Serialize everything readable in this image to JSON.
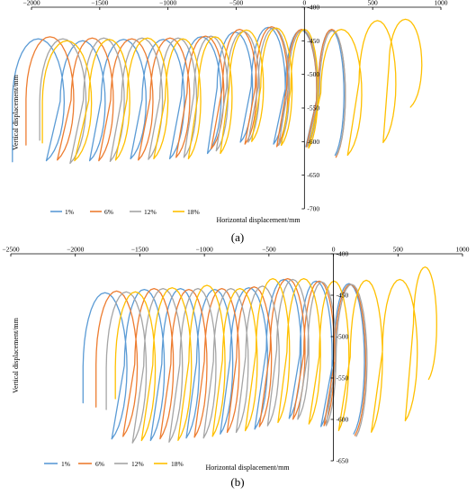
{
  "chart_data": [
    {
      "type": "line",
      "panel_label": "(a)",
      "xlabel": "Horizontal displacement/mm",
      "ylabel": "Vertical displacement/mm",
      "xlim": [
        -2000,
        1000
      ],
      "ylim": [
        -700,
        -400
      ],
      "x_ticks": [
        -2000,
        -1500,
        -1000,
        -500,
        0,
        500,
        1000
      ],
      "x_tick_labels": [
        "−2000",
        "−1500",
        "−1000",
        "−500",
        "0",
        "500",
        "1000"
      ],
      "y_ticks": [
        -400,
        -450,
        -500,
        -550,
        -600,
        -650,
        -700
      ],
      "y_tick_labels": [
        "-400",
        "-450",
        "-500",
        "-550",
        "-600",
        "-650",
        "-700"
      ],
      "grid": false,
      "legend_position": "bottom-left",
      "series": [
        {
          "name": "1%",
          "color": "#5B9BD5",
          "start": [
            -2140,
            -630
          ],
          "cycles": [
            {
              "left": -2140,
              "right": -1760,
              "top": -447,
              "bottom": -633
            },
            {
              "left": -1790,
              "right": -1460,
              "top": -450,
              "bottom": -633
            },
            {
              "left": -1490,
              "right": -1160,
              "top": -448,
              "bottom": -630
            },
            {
              "left": -1190,
              "right": -880,
              "top": -448,
              "bottom": -630
            },
            {
              "left": -900,
              "right": -610,
              "top": -444,
              "bottom": -622
            },
            {
              "left": -640,
              "right": -380,
              "top": -437,
              "bottom": -605
            },
            {
              "left": -390,
              "right": -140,
              "top": -430,
              "bottom": -608
            },
            {
              "left": -140,
              "right": 90,
              "top": -434,
              "bottom": -612
            },
            {
              "left": 100,
              "right": 290,
              "top": -434,
              "bottom": -625
            }
          ]
        },
        {
          "name": "6%",
          "color": "#ED7D31",
          "start": [
            -2040,
            -605
          ],
          "cycles": [
            {
              "left": -2040,
              "right": -1690,
              "top": -444,
              "bottom": -632
            },
            {
              "left": -1710,
              "right": -1400,
              "top": -446,
              "bottom": -633
            },
            {
              "left": -1420,
              "right": -1110,
              "top": -447,
              "bottom": -632
            },
            {
              "left": -1130,
              "right": -840,
              "top": -446,
              "bottom": -628
            },
            {
              "left": -860,
              "right": -590,
              "top": -443,
              "bottom": -615
            },
            {
              "left": -600,
              "right": -350,
              "top": -433,
              "bottom": -608
            },
            {
              "left": -360,
              "right": -120,
              "top": -429,
              "bottom": -612
            },
            {
              "left": -130,
              "right": 90,
              "top": -433,
              "bottom": -612
            },
            {
              "left": 100,
              "right": 300,
              "top": -433,
              "bottom": -628
            }
          ]
        },
        {
          "name": "12%",
          "color": "#A5A5A5",
          "start": [
            -1940,
            -598
          ],
          "cycles": [
            {
              "left": -1940,
              "right": -1600,
              "top": -447,
              "bottom": -637
            },
            {
              "left": -1620,
              "right": -1320,
              "top": -446,
              "bottom": -634
            },
            {
              "left": -1340,
              "right": -1040,
              "top": -446,
              "bottom": -631
            },
            {
              "left": -1060,
              "right": -790,
              "top": -446,
              "bottom": -628
            },
            {
              "left": -810,
              "right": -560,
              "top": -443,
              "bottom": -618
            },
            {
              "left": -570,
              "right": -330,
              "top": -436,
              "bottom": -605
            },
            {
              "left": -340,
              "right": -110,
              "top": -431,
              "bottom": -610
            },
            {
              "left": -120,
              "right": 95,
              "top": -434,
              "bottom": -612
            },
            {
              "left": 110,
              "right": 300,
              "top": -435,
              "bottom": -625
            }
          ]
        },
        {
          "name": "18%",
          "color": "#FFC000",
          "start": [
            -1920,
            -602
          ],
          "cycles": [
            {
              "left": -1920,
              "right": -1560,
              "top": -450,
              "bottom": -633
            },
            {
              "left": -1580,
              "right": -1280,
              "top": -448,
              "bottom": -632
            },
            {
              "left": -1300,
              "right": -1000,
              "top": -446,
              "bottom": -630
            },
            {
              "left": -1020,
              "right": -760,
              "top": -447,
              "bottom": -630
            },
            {
              "left": -780,
              "right": -530,
              "top": -444,
              "bottom": -622
            },
            {
              "left": -550,
              "right": -300,
              "top": -434,
              "bottom": -604
            },
            {
              "left": -320,
              "right": -90,
              "top": -431,
              "bottom": -610
            },
            {
              "left": -100,
              "right": 100,
              "top": -433,
              "bottom": -614
            },
            {
              "left": 120,
              "right": 420,
              "top": -433,
              "bottom": -625
            },
            {
              "left": 400,
              "right": 670,
              "top": -420,
              "bottom": -606
            },
            {
              "left": 620,
              "right": 860,
              "top": -418,
              "bottom": -552
            }
          ]
        }
      ]
    },
    {
      "type": "line",
      "panel_label": "(b)",
      "xlabel": "Horizontal displacement/mm",
      "ylabel": "Vertical displacement/mm",
      "xlim": [
        -2500,
        1000
      ],
      "ylim": [
        -650,
        -400
      ],
      "x_ticks": [
        -2500,
        -2000,
        -1500,
        -1000,
        -500,
        0,
        500,
        1000
      ],
      "x_tick_labels": [
        "−2500",
        "−2000",
        "−1500",
        "−1000",
        "−500",
        "0",
        "500",
        "1000"
      ],
      "y_ticks": [
        -400,
        -450,
        -500,
        -550,
        -600,
        -650
      ],
      "y_tick_labels": [
        "-400",
        "-450",
        "-500",
        "-550",
        "-600",
        "-650"
      ],
      "grid": false,
      "legend_position": "bottom-left",
      "series": [
        {
          "name": "1%",
          "color": "#5B9BD5",
          "start": [
            -1940,
            -580
          ],
          "cycles": [
            {
              "left": -1940,
              "right": -1600,
              "top": -447,
              "bottom": -628
            },
            {
              "left": -1620,
              "right": -1310,
              "top": -443,
              "bottom": -630
            },
            {
              "left": -1330,
              "right": -1040,
              "top": -442,
              "bottom": -627
            },
            {
              "left": -1060,
              "right": -780,
              "top": -443,
              "bottom": -622
            },
            {
              "left": -800,
              "right": -510,
              "top": -441,
              "bottom": -616
            },
            {
              "left": -520,
              "right": -250,
              "top": -431,
              "bottom": -603
            },
            {
              "left": -260,
              "right": -10,
              "top": -433,
              "bottom": -613
            },
            {
              "left": 0,
              "right": 240,
              "top": -436,
              "bottom": -622
            }
          ]
        },
        {
          "name": "6%",
          "color": "#ED7D31",
          "start": [
            -1840,
            -585
          ],
          "cycles": [
            {
              "left": -1840,
              "right": -1520,
              "top": -445,
              "bottom": -625
            },
            {
              "left": -1540,
              "right": -1240,
              "top": -442,
              "bottom": -628
            },
            {
              "left": -1260,
              "right": -980,
              "top": -443,
              "bottom": -626
            },
            {
              "left": -1000,
              "right": -730,
              "top": -442,
              "bottom": -620
            },
            {
              "left": -750,
              "right": -480,
              "top": -440,
              "bottom": -613
            },
            {
              "left": -490,
              "right": -220,
              "top": -430,
              "bottom": -604
            },
            {
              "left": -230,
              "right": 10,
              "top": -433,
              "bottom": -612
            },
            {
              "left": 10,
              "right": 250,
              "top": -437,
              "bottom": -624
            }
          ]
        },
        {
          "name": "12%",
          "color": "#A5A5A5",
          "start": [
            -1760,
            -588
          ],
          "cycles": [
            {
              "left": -1760,
              "right": -1450,
              "top": -446,
              "bottom": -633
            },
            {
              "left": -1470,
              "right": -1170,
              "top": -442,
              "bottom": -632
            },
            {
              "left": -1190,
              "right": -910,
              "top": -442,
              "bottom": -627
            },
            {
              "left": -930,
              "right": -660,
              "top": -442,
              "bottom": -620
            },
            {
              "left": -680,
              "right": -420,
              "top": -439,
              "bottom": -612
            },
            {
              "left": -440,
              "right": -190,
              "top": -431,
              "bottom": -604
            },
            {
              "left": -200,
              "right": 20,
              "top": -434,
              "bottom": -612
            },
            {
              "left": 20,
              "right": 260,
              "top": -437,
              "bottom": -625
            }
          ]
        },
        {
          "name": "18%",
          "color": "#FFC000",
          "start": [
            -1690,
            -575
          ],
          "cycles": [
            {
              "left": -1690,
              "right": -1380,
              "top": -446,
              "bottom": -630
            },
            {
              "left": -1400,
              "right": -1100,
              "top": -441,
              "bottom": -630
            },
            {
              "left": -1120,
              "right": -840,
              "top": -438,
              "bottom": -625
            },
            {
              "left": -860,
              "right": -590,
              "top": -442,
              "bottom": -618
            },
            {
              "left": -600,
              "right": -340,
              "top": -430,
              "bottom": -608
            },
            {
              "left": -360,
              "right": -100,
              "top": -430,
              "bottom": -610
            },
            {
              "left": -110,
              "right": 120,
              "top": -433,
              "bottom": -618
            },
            {
              "left": 130,
              "right": 380,
              "top": -432,
              "bottom": -620
            },
            {
              "left": 380,
              "right": 650,
              "top": -431,
              "bottom": -606
            },
            {
              "left": 620,
              "right": 800,
              "top": -416,
              "bottom": -555
            }
          ]
        }
      ]
    }
  ]
}
